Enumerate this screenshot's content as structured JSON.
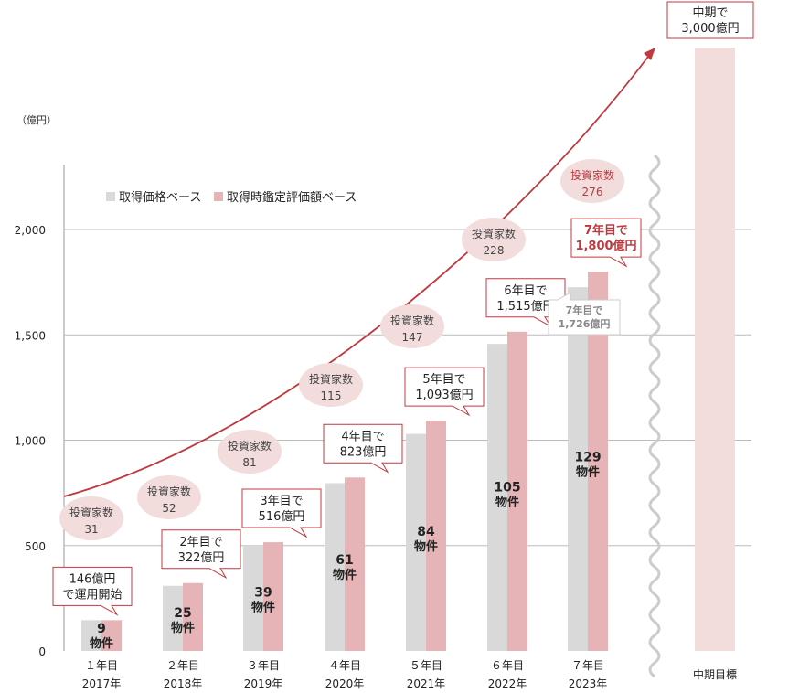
{
  "chart_data": {
    "type": "bar",
    "unit_label": "（億円）",
    "ylim": [
      0,
      2300
    ],
    "yticks": [
      0,
      500,
      1000,
      1500,
      2000
    ],
    "ytick_labels": [
      "0",
      "500",
      "1,000",
      "1,500",
      "2,000"
    ],
    "categories": [
      [
        "１年目",
        "2017年"
      ],
      [
        "２年目",
        "2018年"
      ],
      [
        "３年目",
        "2019年"
      ],
      [
        "４年目",
        "2020年"
      ],
      [
        "５年目",
        "2021年"
      ],
      [
        "６年目",
        "2022年"
      ],
      [
        "７年目",
        "2023年"
      ]
    ],
    "series": [
      {
        "name": "取得価格ベース",
        "color": "#d9d9d9",
        "values": [
          146,
          309,
          500,
          796,
          1030,
          1457,
          1726
        ]
      },
      {
        "name": "取得時鑑定評価額ベース",
        "color": "#e6b4b6",
        "values": [
          146,
          322,
          516,
          823,
          1093,
          1515,
          1800
        ]
      }
    ],
    "properties": [
      [
        "9",
        "物件"
      ],
      [
        "25",
        "物件"
      ],
      [
        "39",
        "物件"
      ],
      [
        "61",
        "物件"
      ],
      [
        "84",
        "物件"
      ],
      [
        "105",
        "物件"
      ],
      [
        "129",
        "物件"
      ]
    ],
    "investors": [
      [
        "投資家数",
        "31"
      ],
      [
        "投資家数",
        "52"
      ],
      [
        "投資家数",
        "81"
      ],
      [
        "投資家数",
        "115"
      ],
      [
        "投資家数",
        "147"
      ],
      [
        "投資家数",
        "228"
      ],
      [
        "投資家数",
        "276"
      ]
    ],
    "callouts": [
      [
        "146億円",
        "で運用開始"
      ],
      [
        "2年目で",
        "322億円"
      ],
      [
        "3年目で",
        "516億円"
      ],
      [
        "4年目で",
        "823億円"
      ],
      [
        "5年目で",
        "1,093億円"
      ],
      [
        "6年目で",
        "1,515億円"
      ],
      [
        "7年目で",
        "1,800億円"
      ]
    ],
    "gray_callout": [
      "7年目で",
      "1,726億円"
    ],
    "target": {
      "label": "中期目標",
      "value": 3000,
      "callout": [
        "中期で",
        "3,000億円"
      ],
      "color": "#f2dcdc"
    },
    "accent": "#c0393f"
  }
}
